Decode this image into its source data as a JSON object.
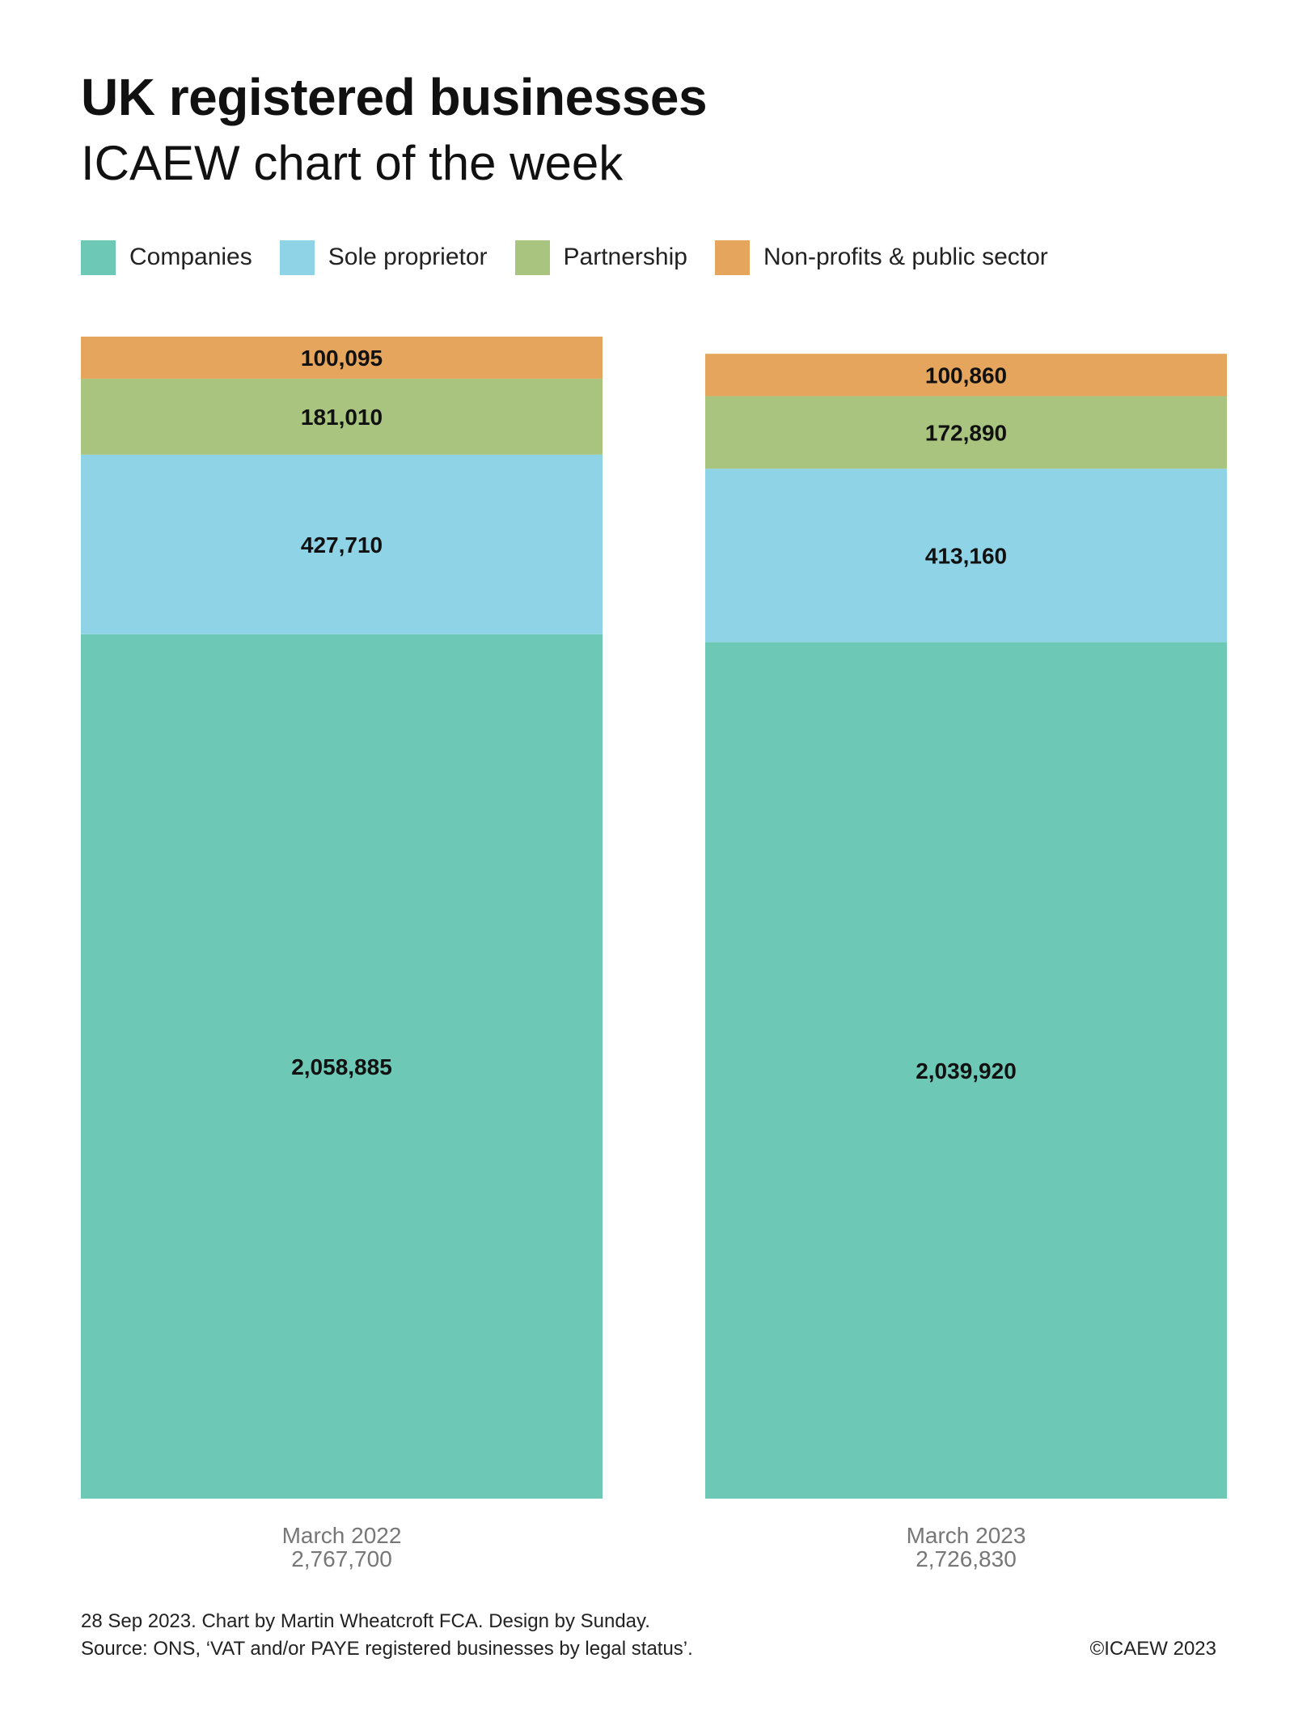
{
  "title": "UK registered businesses",
  "subtitle": "ICAEW chart of the week",
  "colors": {
    "companies": "#6EC8B6",
    "sole": "#8FD3E6",
    "partnership": "#A8C47F",
    "nonprofit": "#E6A55C"
  },
  "legend": [
    {
      "label": "Companies",
      "color": "#6EC8B6"
    },
    {
      "label": "Sole proprietor",
      "color": "#8FD3E6"
    },
    {
      "label": "Partnership",
      "color": "#A8C47F"
    },
    {
      "label": "Non-profits & public sector",
      "color": "#E6A55C"
    }
  ],
  "chart_data": {
    "type": "bar",
    "stacked": true,
    "categories": [
      "March 2022",
      "March 2023"
    ],
    "category_totals": [
      "2,767,700",
      "2,726,830"
    ],
    "series": [
      {
        "name": "Companies",
        "values": [
          2058885,
          2039920
        ],
        "labels": [
          "2,058,885",
          "2,039,920"
        ],
        "color": "#6EC8B6"
      },
      {
        "name": "Sole proprietor",
        "values": [
          427710,
          413160
        ],
        "labels": [
          "427,710",
          "413,160"
        ],
        "color": "#8FD3E6"
      },
      {
        "name": "Partnership",
        "values": [
          181010,
          172890
        ],
        "labels": [
          "181,010",
          "172,890"
        ],
        "color": "#A8C47F"
      },
      {
        "name": "Non-profits & public sector",
        "values": [
          100095,
          100860
        ],
        "labels": [
          "100,095",
          "100,860"
        ],
        "color": "#E6A55C"
      }
    ],
    "legend_position": "top-left",
    "grid": false
  },
  "footer": {
    "credit": "28 Sep 2023.   Chart by Martin Wheatcroft FCA. Design by Sunday.",
    "source": "Source: ONS, ‘VAT and/or PAYE registered businesses by legal status’.",
    "copyright": "©ICAEW 2023"
  }
}
